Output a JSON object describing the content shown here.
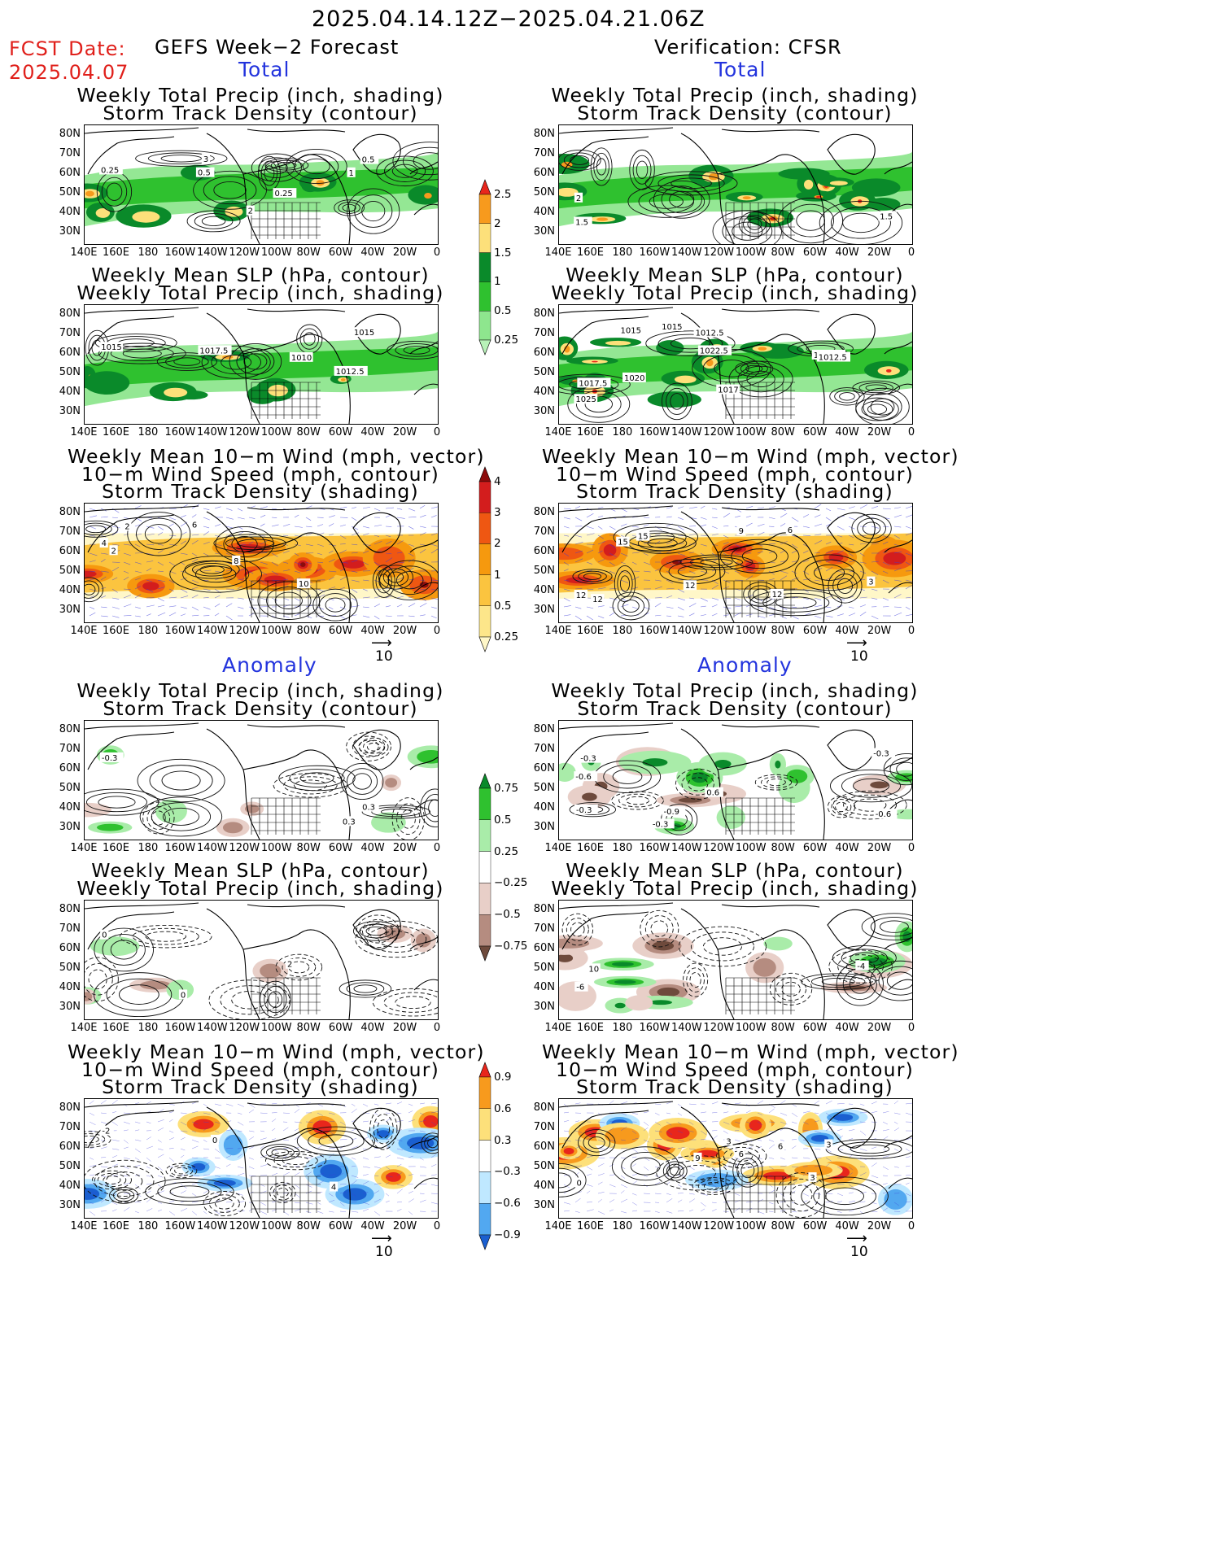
{
  "header": {
    "period": "2025.04.14.12Z−2025.04.21.06Z",
    "fcst_label": "FCST Date:",
    "fcst_date": "2025.04.07",
    "left_title": "GEFS Week−2 Forecast",
    "right_title": "Verification: CFSR"
  },
  "sections": {
    "total": "Total",
    "anomaly": "Anomaly"
  },
  "panel_titles": {
    "precip_storm": [
      "Weekly Total Precip (inch, shading)",
      "Storm Track Density (contour)"
    ],
    "slp_precip": [
      "Weekly Mean SLP (hPa, contour)",
      "Weekly Total Precip (inch, shading)"
    ],
    "wind_storm": [
      "Weekly Mean 10−m Wind (mph, vector)",
      "10−m Wind Speed (mph, contour)",
      "Storm Track Density (shading)"
    ]
  },
  "axes": {
    "lat_ticks": [
      "80N",
      "70N",
      "60N",
      "50N",
      "40N",
      "30N"
    ],
    "lon_ticks": [
      "140E",
      "160E",
      "180",
      "160W",
      "140W",
      "120W",
      "100W",
      "80W",
      "60W",
      "40W",
      "20W",
      "0"
    ]
  },
  "vector_scale": "10",
  "colorbars": {
    "precip_total": {
      "labels": [
        "2.5",
        "2",
        "1.5",
        "1",
        "0.5",
        "0.25"
      ],
      "colors": [
        "#e8261c",
        "#f79a1d",
        "#fde07a",
        "#0a8a2a",
        "#2fc12f",
        "#8ee68e",
        "#b8f2b8"
      ]
    },
    "storm_total": {
      "labels": [
        "4",
        "3",
        "2",
        "1",
        "0.5",
        "0.25"
      ],
      "colors": [
        "#8c0c0c",
        "#d31d1d",
        "#ef5712",
        "#f6990e",
        "#fbc43f",
        "#fde68a",
        "#fff7c8"
      ]
    },
    "precip_anom": {
      "labels": [
        "0.75",
        "0.5",
        "0.25",
        "−0.25",
        "−0.5",
        "−0.75"
      ],
      "colors": [
        "#0a8a2a",
        "#2fc12f",
        "#a9eca9",
        "#ffffff",
        "#e8cfc8",
        "#b58c80",
        "#6e4a3c"
      ]
    },
    "storm_anom": {
      "labels": [
        "0.9",
        "0.6",
        "0.3",
        "−0.3",
        "−0.6",
        "−0.9"
      ],
      "colors": [
        "#e8261c",
        "#f79a1d",
        "#fde07a",
        "#ffffff",
        "#bfe8ff",
        "#52a8f0",
        "#1a5fd0"
      ]
    }
  },
  "contour_labels": {
    "p1": [
      "0.25",
      "0.25",
      "3",
      "2",
      "1",
      "0.5",
      "0.5"
    ],
    "p2": [
      "1015",
      "1017.5",
      "1015",
      "1012.5",
      "1010"
    ],
    "p3": [
      "4",
      "2",
      "6",
      "2",
      "8",
      "10"
    ],
    "p4": [
      "-0.3",
      "0.3",
      "0.3"
    ],
    "p5": [
      "0",
      "2",
      "0"
    ],
    "p6": [
      "-2",
      "0",
      "4"
    ],
    "v1": [
      "1.5",
      "2",
      "1.5"
    ],
    "v2": [
      "1025",
      "1022.5",
      "1017",
      "1022.5",
      "1012.5",
      "1020",
      "1017.5",
      "1010",
      "1015",
      "1015",
      "1012.5"
    ],
    "v3": [
      "12",
      "9",
      "3",
      "6",
      "15",
      "12",
      "12",
      "15",
      "12"
    ],
    "v4": [
      "-0.3",
      "-0.9",
      "0.6",
      "-0.6",
      "-0.3",
      "-0.3",
      "-0.3",
      "-0.6"
    ],
    "v5": [
      "-6",
      "10",
      "-4"
    ],
    "v6": [
      "0",
      "3",
      "9",
      "6",
      "6",
      "3",
      "3"
    ]
  }
}
